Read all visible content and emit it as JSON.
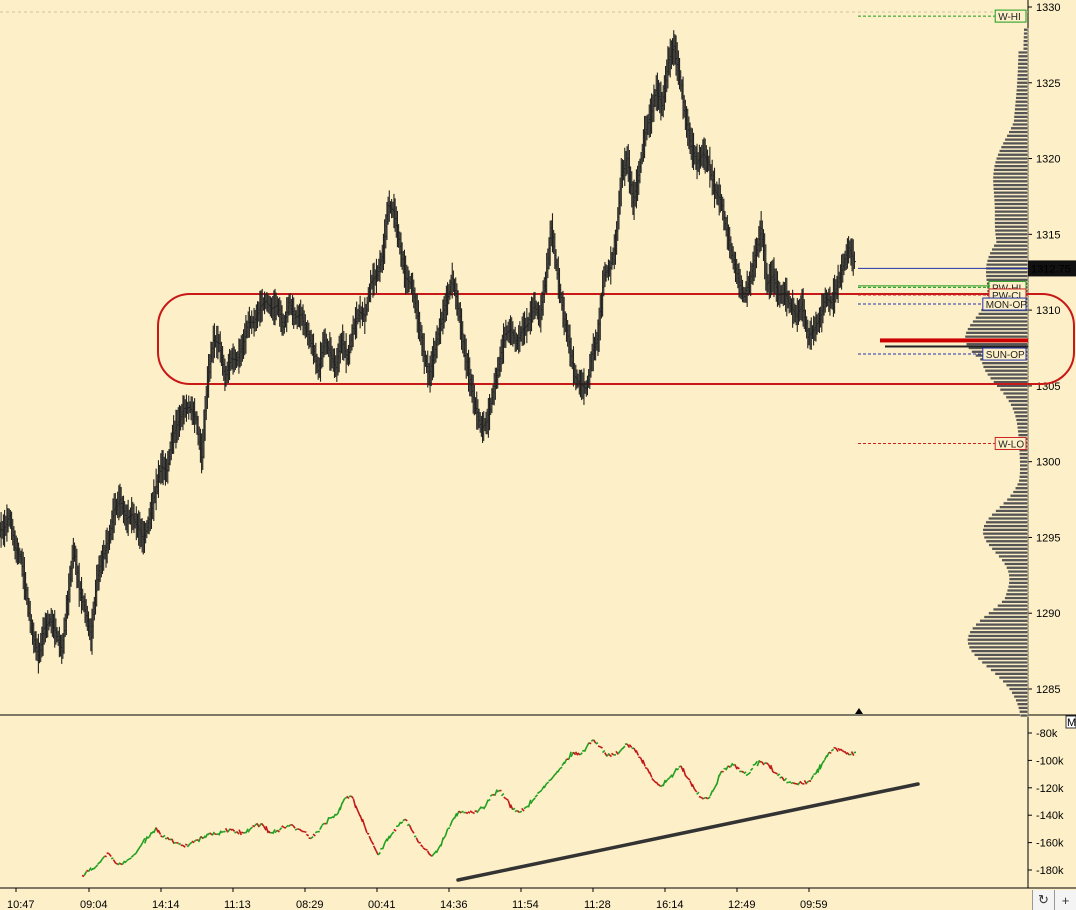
{
  "chart_data": [
    {
      "type": "ohlc_bar_with_volume_profile",
      "y_axis_ticks": [
        "1330",
        "1325",
        "1320",
        "1315",
        "1310",
        "1305",
        "1300",
        "1295",
        "1290",
        "1285"
      ],
      "ylim": [
        1283.3,
        1330.8
      ],
      "last_price": "1312.75",
      "levels": [
        {
          "label": "W-HI",
          "price": 1329.4,
          "color": "#1a9a1a",
          "box": "#1a9a1a"
        },
        {
          "label": "PW-HI",
          "price": 1311.5,
          "color": "#1a9a1a",
          "box": "#1a9a1a"
        },
        {
          "label": "PW-CL",
          "price": 1311.0,
          "color": "#cc2222",
          "box": "#cc2222"
        },
        {
          "label": "MON-OP",
          "price": 1310.4,
          "color": "#2233aa",
          "box": "#2233aa"
        },
        {
          "label": "SUN-OP",
          "price": 1307.1,
          "color": "#2233aa",
          "box": "#2233aa"
        },
        {
          "label": "W-LO",
          "price": 1301.2,
          "color": "#cc2222",
          "box": "#cc2222"
        }
      ],
      "price_series": [
        1295.5,
        1296.4,
        1294.3,
        1293.6,
        1291,
        1288.5,
        1287.2,
        1289,
        1289.6,
        1288.7,
        1287.5,
        1290.9,
        1294.3,
        1291.6,
        1290.2,
        1288.4,
        1292.2,
        1293.7,
        1294.8,
        1296.8,
        1297.5,
        1296.2,
        1296.5,
        1295.7,
        1294.9,
        1296.2,
        1298,
        1299.7,
        1299.4,
        1301.7,
        1302.6,
        1303.5,
        1303.6,
        1302.8,
        1300.3,
        1305.4,
        1308,
        1307.8,
        1305.5,
        1306.8,
        1306.7,
        1307.6,
        1309.2,
        1309.2,
        1310.2,
        1310.6,
        1310.1,
        1310.3,
        1308.9,
        1310.5,
        1309.5,
        1309.7,
        1308.6,
        1307.6,
        1306,
        1308,
        1307.2,
        1306.2,
        1308,
        1306.8,
        1308.8,
        1309.9,
        1309.6,
        1311.8,
        1312.3,
        1313.5,
        1316.9,
        1316.5,
        1314.2,
        1312.1,
        1311.7,
        1309.6,
        1307.3,
        1305.6,
        1307.4,
        1309.1,
        1310.6,
        1312.1,
        1310.1,
        1307.4,
        1305.4,
        1303.5,
        1302.2,
        1302.7,
        1304.6,
        1306.4,
        1308.4,
        1308.7,
        1307.8,
        1308.7,
        1309.1,
        1310.4,
        1309.5,
        1312.1,
        1315.4,
        1312.4,
        1309.8,
        1307.9,
        1305.6,
        1305.1,
        1304.8,
        1307.1,
        1308.3,
        1312.3,
        1312.8,
        1314.3,
        1318.9,
        1320,
        1317.1,
        1318.9,
        1321.7,
        1322.8,
        1324.5,
        1323.5,
        1326.3,
        1327.4,
        1325.4,
        1322.6,
        1320.8,
        1319.7,
        1320.4,
        1319.6,
        1317.9,
        1317.3,
        1315.3,
        1313.6,
        1312.1,
        1310.9,
        1311.9,
        1313.6,
        1315.4,
        1311.7,
        1312.3,
        1311,
        1311.1,
        1310.3,
        1309.6,
        1310.4,
        1308.2,
        1308.7,
        1309.4,
        1310.8,
        1310.5,
        1311.6,
        1312.9,
        1314.1,
        1313.2
      ],
      "volume_profile_color": "#555555",
      "poc_color": "#cc0000"
    },
    {
      "type": "line",
      "y_axis_ticks": [
        "-80k",
        "-100k",
        "-120k",
        "-140k",
        "-160k",
        "-180k"
      ],
      "ylim": [
        -186000,
        -76000
      ],
      "series": [
        {
          "values": [
            -184000,
            -181000,
            -178000,
            -172000,
            -168000,
            -175000,
            -176000,
            -172000,
            -168000,
            -160000,
            -156000,
            -149000,
            -156000,
            -158000,
            -160000,
            -162000,
            -161000,
            -158000,
            -157000,
            -153000,
            -154000,
            -152000,
            -150000,
            -152000,
            -153000,
            -150000,
            -146000,
            -148000,
            -153000,
            -151000,
            -149000,
            -147000,
            -150000,
            -152000,
            -157000,
            -152000,
            -146000,
            -142000,
            -139000,
            -128000,
            -126000,
            -137000,
            -148000,
            -159000,
            -169000,
            -160000,
            -154000,
            -148000,
            -143000,
            -151000,
            -160000,
            -165000,
            -170000,
            -164000,
            -155000,
            -144000,
            -137000,
            -138000,
            -138000,
            -136000,
            -133000,
            -125000,
            -122000,
            -128000,
            -136000,
            -138000,
            -134000,
            -129000,
            -123000,
            -117000,
            -112000,
            -106000,
            -99000,
            -94000,
            -96000,
            -90000,
            -85000,
            -90000,
            -97000,
            -96000,
            -93000,
            -88000,
            -91000,
            -98000,
            -106000,
            -115000,
            -119000,
            -114000,
            -109000,
            -104000,
            -113000,
            -121000,
            -127000,
            -128000,
            -120000,
            -108000,
            -104000,
            -103000,
            -108000,
            -110000,
            -103000,
            -101000,
            -103000,
            -109000,
            -112000,
            -116000,
            -117000,
            -117000,
            -115000,
            -110000,
            -102000,
            -94000,
            -91000,
            -93000,
            -96000,
            -94000
          ]
        }
      ],
      "colors": {
        "up": "#20a020",
        "down": "#c01818"
      },
      "trendline_color": "#333333"
    }
  ],
  "x_axis_labels": [
    "10:47",
    "09:04",
    "14:14",
    "11:13",
    "08:29",
    "00:41",
    "14:36",
    "11:54",
    "11:28",
    "16:14",
    "12:49",
    "09:59"
  ],
  "corner": {
    "indicator_tag": "M",
    "refresh_icon": "↻",
    "add_icon": "+"
  }
}
